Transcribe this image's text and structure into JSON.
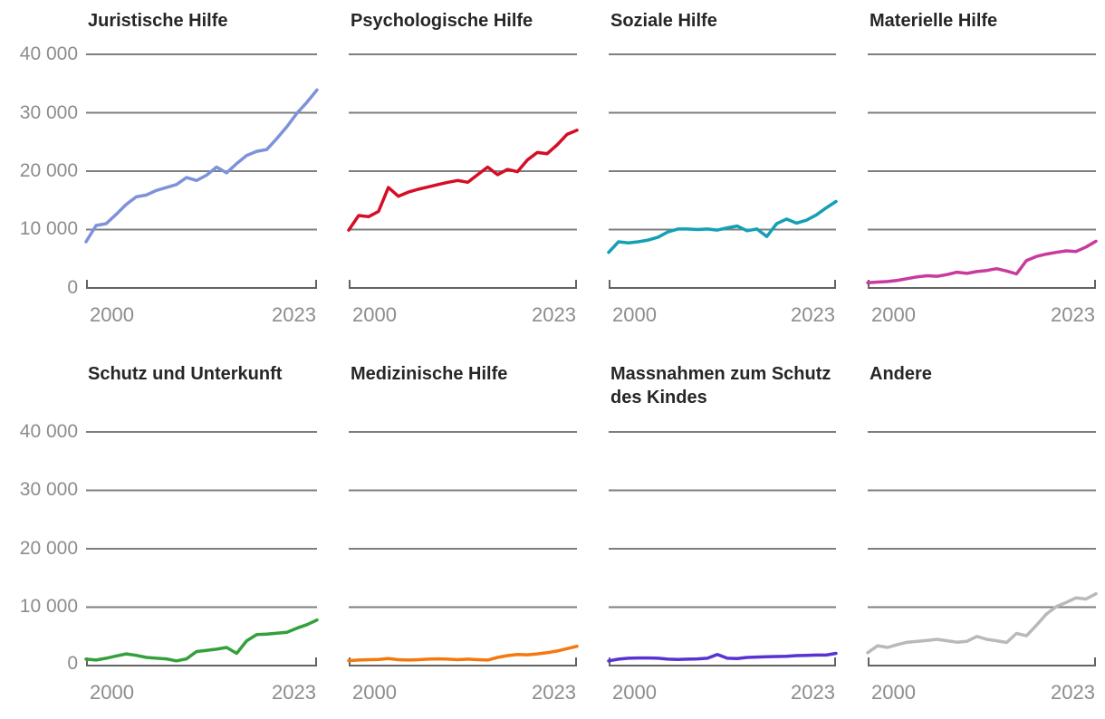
{
  "chart_data": {
    "type": "line",
    "layout": "small multiples: 2 rows x 4 columns, shared axes",
    "title": "",
    "xlabel": "",
    "ylabel": "",
    "x": [
      2000,
      2001,
      2002,
      2003,
      2004,
      2005,
      2006,
      2007,
      2008,
      2009,
      2010,
      2011,
      2012,
      2013,
      2014,
      2015,
      2016,
      2017,
      2018,
      2019,
      2020,
      2021,
      2022,
      2023
    ],
    "x_first_label": "2000",
    "x_last_label": "2023",
    "ylim": [
      0,
      40000
    ],
    "y_tick_values": [
      40000,
      30000,
      20000,
      10000,
      0
    ],
    "y_tick_labels": [
      "40 000",
      "30 000",
      "20 000",
      "10 000",
      "0"
    ],
    "grid": "horizontal gridlines only, at 10 000 steps; baseline axis drawn as bracket with upturned end ticks",
    "legend": "none (one colored series per titled panel)",
    "colors": {
      "grid_line": "#7e7e7e",
      "axis_line": "#636363",
      "tick_text": "#8c8c8c",
      "title_text": "#262626",
      "background": "#ffffff"
    },
    "panels": [
      {
        "title": "Juristische Hilfe",
        "color": "#7d92da",
        "values": [
          7900,
          10700,
          11000,
          12600,
          14300,
          15600,
          15900,
          16700,
          17200,
          17700,
          18900,
          18400,
          19300,
          20700,
          19700,
          21300,
          22700,
          23400,
          23700,
          25600,
          27600,
          29900,
          31800,
          33900
        ]
      },
      {
        "title": "Psychologische Hilfe",
        "color": "#d60d26",
        "values": [
          9900,
          12400,
          12200,
          13100,
          17200,
          15700,
          16400,
          16900,
          17300,
          17700,
          18100,
          18400,
          18100,
          19400,
          20700,
          19400,
          20300,
          19900,
          21900,
          23200,
          23000,
          24500,
          26300,
          27000
        ]
      },
      {
        "title": "Soziale Hilfe",
        "color": "#14a0b4",
        "values": [
          6100,
          7900,
          7700,
          7900,
          8200,
          8700,
          9600,
          10100,
          10100,
          10000,
          10100,
          9900,
          10300,
          10600,
          9800,
          10100,
          8800,
          11000,
          11800,
          11100,
          11600,
          12500,
          13700,
          14800
        ]
      },
      {
        "title": "Materielle Hilfe",
        "color": "#c93a9e",
        "values": [
          900,
          1000,
          1100,
          1300,
          1600,
          1900,
          2100,
          2000,
          2300,
          2700,
          2500,
          2800,
          3000,
          3300,
          2900,
          2400,
          4700,
          5400,
          5800,
          6100,
          6350,
          6250,
          7000,
          8000
        ]
      },
      {
        "title": "Schutz und Unterkunft",
        "color": "#34a03c",
        "values": [
          1100,
          950,
          1250,
          1650,
          2000,
          1750,
          1400,
          1250,
          1150,
          800,
          1150,
          2400,
          2600,
          2800,
          3100,
          2100,
          4250,
          5300,
          5400,
          5550,
          5700,
          6400,
          7000,
          7800
        ]
      },
      {
        "title": "Medizinische Hilfe",
        "color": "#f5780f",
        "values": [
          850,
          950,
          1000,
          1050,
          1200,
          1000,
          950,
          1000,
          1100,
          1150,
          1100,
          1000,
          1100,
          1000,
          950,
          1400,
          1700,
          1900,
          1850,
          2000,
          2200,
          2500,
          2900,
          3300
        ]
      },
      {
        "title": "Massnahmen zum Schutz des Kindes",
        "color": "#5733d2",
        "values": [
          800,
          1100,
          1250,
          1300,
          1300,
          1250,
          1100,
          1050,
          1100,
          1150,
          1250,
          1900,
          1250,
          1200,
          1400,
          1450,
          1500,
          1550,
          1600,
          1700,
          1750,
          1800,
          1800,
          2100
        ]
      },
      {
        "title": "Andere",
        "color": "#b9b9b9",
        "values": [
          2200,
          3400,
          3100,
          3600,
          4000,
          4150,
          4300,
          4500,
          4250,
          4000,
          4150,
          5000,
          4500,
          4250,
          3950,
          5500,
          5100,
          6900,
          8800,
          10100,
          10800,
          11600,
          11400,
          12300
        ]
      }
    ]
  }
}
